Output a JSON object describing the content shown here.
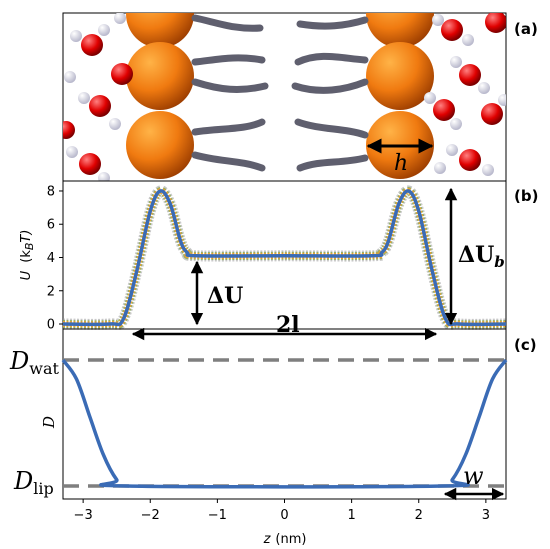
{
  "panels": {
    "a": {
      "label": "(a)",
      "h_label": "h"
    },
    "b": {
      "label": "(b)",
      "delta_u": "ΔU",
      "delta_u_b_main": "ΔU",
      "delta_u_b_sub": "b",
      "two_l": "2l"
    },
    "c": {
      "label": "(c)",
      "d_wat_main": "D",
      "d_wat_sub": "wat",
      "d_lip_main": "D",
      "d_lip_sub": "lip",
      "w_label": "w"
    }
  },
  "colors": {
    "curve": "#3a6bb5",
    "reference_dashed": "#7f7f7f",
    "sim_orange": "#f3a12a",
    "sim_green": "#7ea84a",
    "sim_gray": "#9a9a9a",
    "sphere": "#f07a10",
    "oxygen": "#e00000",
    "hydrogen": "#e8e8f0",
    "lipid_tail": "#606070"
  },
  "chart_data": [
    {
      "panel": "b",
      "type": "line",
      "ylabel_main": "U",
      "ylabel_unit": "(k",
      "ylabel_unit_sub": "B",
      "ylabel_unit_end": "T)",
      "xlim": [
        -3.3,
        3.3
      ],
      "ylim": [
        -0.3,
        8.6
      ],
      "yticks": [
        "0",
        "2",
        "4",
        "6",
        "8"
      ],
      "series": [
        {
          "style": "model",
          "x": [
            -3.3,
            -2.6,
            -2.4,
            -2.2,
            -2.0,
            -1.85,
            -1.7,
            -1.55,
            -1.45,
            -1.3,
            0,
            1.3,
            1.45,
            1.55,
            1.7,
            1.85,
            2.0,
            2.2,
            2.4,
            2.6,
            3.3
          ],
          "y": [
            0,
            0,
            0.3,
            3.2,
            6.8,
            8.0,
            7.2,
            5.0,
            4.3,
            4.1,
            4.1,
            4.1,
            4.3,
            5.0,
            7.2,
            8.0,
            6.8,
            3.2,
            0.3,
            0,
            0
          ]
        }
      ]
    },
    {
      "panel": "c",
      "type": "line",
      "xlabel_main": "z",
      "xlabel_unit": "(nm)",
      "ylabel": "D",
      "xlim": [
        -3.3,
        3.3
      ],
      "xticks": [
        "−3",
        "−2",
        "−1",
        "0",
        "1",
        "2",
        "3"
      ],
      "levels": {
        "D_wat": 1.0,
        "D_lip": 0.0
      },
      "series": [
        {
          "style": "model",
          "x": [
            -3.3,
            -3.1,
            -2.9,
            -2.7,
            -2.5,
            -2.35,
            2.35,
            2.5,
            2.7,
            2.9,
            3.1,
            3.3
          ],
          "y": [
            1.0,
            0.85,
            0.55,
            0.25,
            0.05,
            0.0,
            0.0,
            0.05,
            0.25,
            0.55,
            0.85,
            1.0
          ]
        }
      ]
    }
  ]
}
